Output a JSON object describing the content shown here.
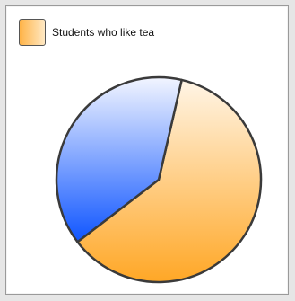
{
  "chart_data": {
    "type": "pie",
    "legend": [
      {
        "label": "Students who like tea",
        "color": "#ffa726"
      }
    ],
    "slices": [
      {
        "value": 61,
        "color_start": "#ffa726",
        "color_end": "#fff3e0"
      },
      {
        "value": 39,
        "color_start": "#1a5cff",
        "color_end": "#eef3ff"
      }
    ],
    "start_angle_deg": 13,
    "legend_position": "top-left"
  }
}
